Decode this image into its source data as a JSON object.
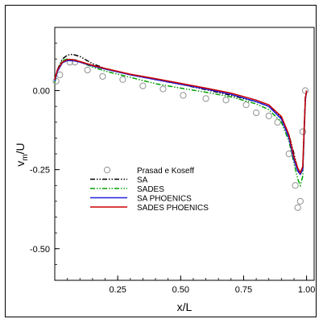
{
  "chart_data": {
    "type": "line",
    "xlabel": "x/L",
    "ylabel_main": "v",
    "ylabel_sub": "m",
    "ylabel_tail": "/U",
    "xlim": [
      0.0,
      1.03
    ],
    "ylim": [
      -0.6,
      0.2
    ],
    "x_ticks": [
      0.25,
      0.5,
      0.75,
      1.0
    ],
    "x_tick_labels": [
      "0.25",
      "0.50",
      "0.75",
      "1.00"
    ],
    "y_ticks": [
      0.0,
      -0.25,
      -0.5
    ],
    "y_tick_labels": [
      "0.00",
      "-0.25",
      "-0.50"
    ],
    "legend_position": "center-left",
    "series": [
      {
        "name": "Prasad e Koseff",
        "style": "markers",
        "color": "#909090",
        "x": [
          0.005,
          0.02,
          0.06,
          0.08,
          0.13,
          0.19,
          0.27,
          0.35,
          0.43,
          0.51,
          0.6,
          0.68,
          0.76,
          0.8,
          0.85,
          0.885,
          0.93,
          0.955,
          0.965,
          0.975,
          0.985,
          0.995
        ],
        "y": [
          0.03,
          0.05,
          0.09,
          0.09,
          0.065,
          0.045,
          0.035,
          0.015,
          0.005,
          -0.015,
          -0.025,
          -0.03,
          -0.045,
          -0.07,
          -0.08,
          -0.1,
          -0.2,
          -0.3,
          -0.37,
          -0.35,
          -0.13,
          0.0
        ]
      },
      {
        "name": "SA",
        "style": "dash-dot-dot",
        "color": "#000000",
        "x": [
          0.0,
          0.01,
          0.03,
          0.05,
          0.07,
          0.1,
          0.15,
          0.2,
          0.3,
          0.4,
          0.5,
          0.6,
          0.7,
          0.8,
          0.85,
          0.9,
          0.93,
          0.95,
          0.965,
          0.975,
          0.985,
          0.99,
          0.995,
          1.0
        ],
        "y": [
          0.03,
          0.065,
          0.1,
          0.112,
          0.115,
          0.108,
          0.085,
          0.07,
          0.05,
          0.035,
          0.02,
          0.003,
          -0.015,
          -0.035,
          -0.05,
          -0.085,
          -0.14,
          -0.2,
          -0.25,
          -0.26,
          -0.24,
          -0.12,
          -0.02,
          0.0
        ]
      },
      {
        "name": "SADES",
        "style": "dash-dot-dot",
        "color": "#00a000",
        "x": [
          0.0,
          0.01,
          0.03,
          0.05,
          0.07,
          0.1,
          0.15,
          0.2,
          0.3,
          0.4,
          0.5,
          0.6,
          0.7,
          0.8,
          0.85,
          0.9,
          0.93,
          0.95,
          0.965,
          0.975,
          0.985,
          0.99,
          0.995,
          1.0
        ],
        "y": [
          0.025,
          0.06,
          0.095,
          0.1,
          0.098,
          0.09,
          0.075,
          0.062,
          0.042,
          0.022,
          0.008,
          -0.005,
          -0.02,
          -0.042,
          -0.06,
          -0.1,
          -0.16,
          -0.23,
          -0.28,
          -0.3,
          -0.27,
          -0.15,
          -0.03,
          0.0
        ]
      },
      {
        "name": "SA PHOENICS",
        "style": "solid",
        "color": "#2020e0",
        "x": [
          0.0,
          0.01,
          0.03,
          0.05,
          0.07,
          0.1,
          0.15,
          0.2,
          0.3,
          0.4,
          0.5,
          0.6,
          0.7,
          0.8,
          0.85,
          0.9,
          0.93,
          0.95,
          0.965,
          0.975,
          0.985,
          0.99,
          0.995,
          1.0
        ],
        "y": [
          0.03,
          0.06,
          0.088,
          0.095,
          0.095,
          0.09,
          0.078,
          0.068,
          0.05,
          0.035,
          0.02,
          0.005,
          -0.012,
          -0.035,
          -0.05,
          -0.09,
          -0.15,
          -0.22,
          -0.255,
          -0.265,
          -0.25,
          -0.14,
          -0.03,
          0.0
        ]
      },
      {
        "name": "SADES PHOENICS",
        "style": "solid",
        "color": "#cc0000",
        "x": [
          0.0,
          0.01,
          0.03,
          0.05,
          0.07,
          0.1,
          0.15,
          0.2,
          0.3,
          0.4,
          0.5,
          0.6,
          0.7,
          0.8,
          0.85,
          0.9,
          0.93,
          0.95,
          0.965,
          0.975,
          0.985,
          0.99,
          0.995,
          1.0
        ],
        "y": [
          0.035,
          0.065,
          0.09,
          0.098,
          0.098,
          0.092,
          0.08,
          0.07,
          0.052,
          0.038,
          0.023,
          0.008,
          -0.008,
          -0.03,
          -0.045,
          -0.082,
          -0.14,
          -0.21,
          -0.245,
          -0.26,
          -0.24,
          -0.13,
          -0.025,
          0.0
        ]
      }
    ]
  }
}
